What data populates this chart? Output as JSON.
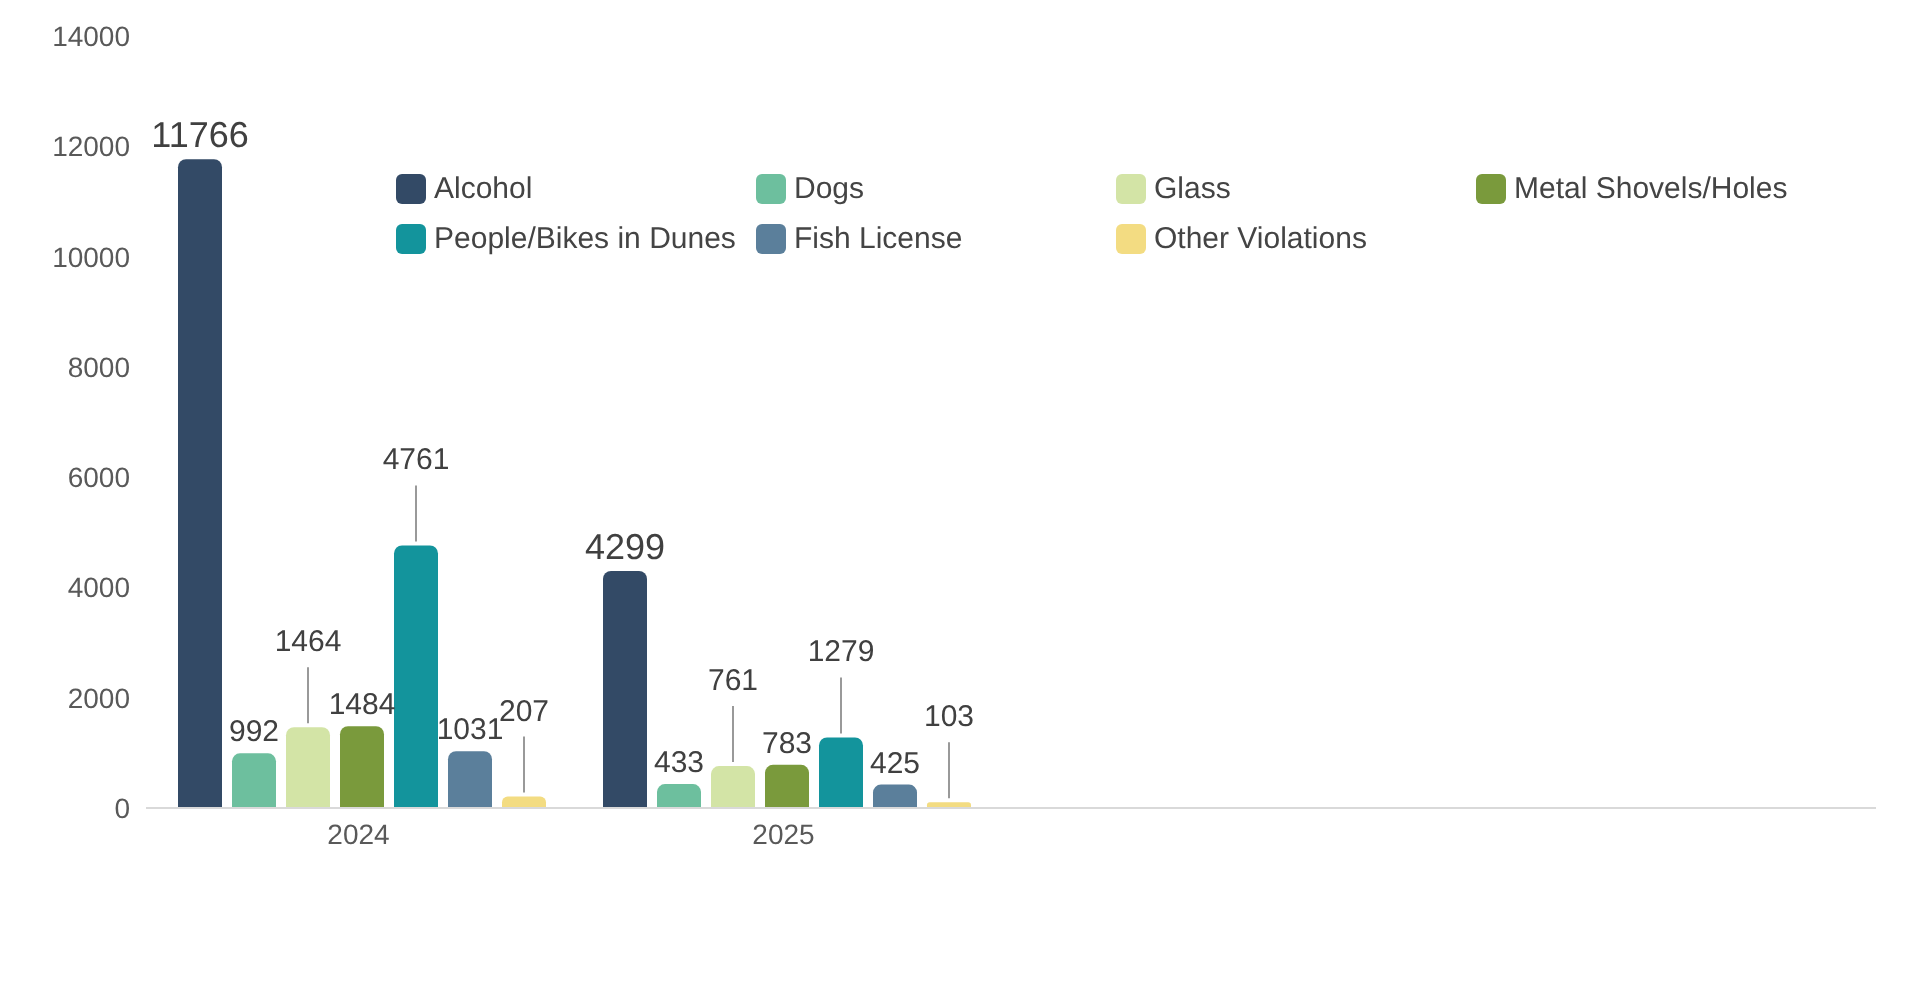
{
  "chart_data": {
    "type": "bar",
    "categories": [
      "2024",
      "2025"
    ],
    "series": [
      {
        "name": "Alcohol",
        "color": "#334a66",
        "values": [
          11766,
          4299
        ]
      },
      {
        "name": "Dogs",
        "color": "#6dbf9e",
        "values": [
          992,
          433
        ]
      },
      {
        "name": "Glass",
        "color": "#d3e4a6",
        "values": [
          1464,
          761
        ]
      },
      {
        "name": "Metal Shovels/Holes",
        "color": "#7a9a3c",
        "values": [
          1484,
          783
        ]
      },
      {
        "name": "People/Bikes in Dunes",
        "color": "#13949c",
        "values": [
          4761,
          1279
        ]
      },
      {
        "name": "Fish License",
        "color": "#5b7f9b",
        "values": [
          1031,
          425
        ]
      },
      {
        "name": "Other Violations",
        "color": "#f3dc82",
        "values": [
          207,
          103
        ]
      }
    ],
    "ylim": [
      0,
      14000
    ],
    "yticks": [
      0,
      2000,
      4000,
      6000,
      8000,
      10000,
      12000,
      14000
    ],
    "grid": false,
    "legend": "top right",
    "data_labels": true
  }
}
